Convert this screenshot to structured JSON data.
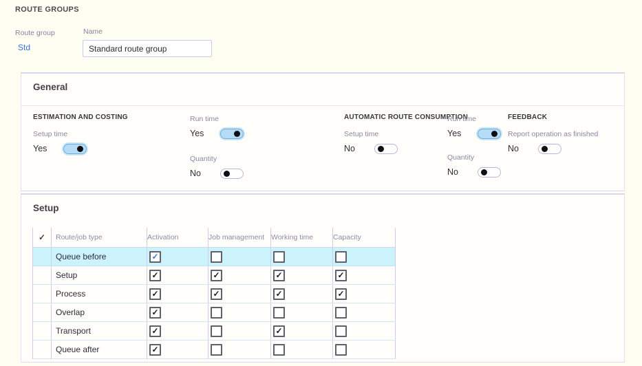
{
  "page": {
    "title": "ROUTE GROUPS"
  },
  "record": {
    "route_group": {
      "label": "Route group",
      "value": "Std"
    },
    "name": {
      "label": "Name",
      "value": "Standard route group"
    }
  },
  "general": {
    "title": "General",
    "estimation_and_costing": {
      "header": "ESTIMATION AND COSTING",
      "setup_time": {
        "label": "Setup time",
        "value": "Yes",
        "on": true
      },
      "run_time": {
        "label": "Run time",
        "value": "Yes",
        "on": true
      },
      "quantity": {
        "label": "Quantity",
        "value": "No",
        "on": false
      }
    },
    "automatic_route_consumption": {
      "header": "AUTOMATIC ROUTE CONSUMPTION",
      "setup_time": {
        "label": "Setup time",
        "value": "No",
        "on": false
      },
      "run_time": {
        "label": "Run time",
        "value": "Yes",
        "on": true
      },
      "quantity": {
        "label": "Quantity",
        "value": "No",
        "on": false
      }
    },
    "feedback": {
      "header": "FEEDBACK",
      "report_operation_as_finished": {
        "label": "Report operation as finished",
        "value": "No",
        "on": false
      }
    }
  },
  "setup": {
    "title": "Setup",
    "table": {
      "select_column_glyph": "✓",
      "check_glyph": "✓",
      "columns": [
        "Route/job type",
        "Activation",
        "Job management",
        "Working time",
        "Capacity"
      ],
      "rows": [
        {
          "route_job_type": "Queue before",
          "activation": true,
          "job_management": false,
          "working_time": false,
          "capacity": false,
          "selected": true
        },
        {
          "route_job_type": "Setup",
          "activation": true,
          "job_management": true,
          "working_time": true,
          "capacity": true,
          "selected": false
        },
        {
          "route_job_type": "Process",
          "activation": true,
          "job_management": true,
          "working_time": true,
          "capacity": true,
          "selected": false
        },
        {
          "route_job_type": "Overlap",
          "activation": true,
          "job_management": false,
          "working_time": false,
          "capacity": false,
          "selected": false
        },
        {
          "route_job_type": "Transport",
          "activation": true,
          "job_management": false,
          "working_time": true,
          "capacity": false,
          "selected": false
        },
        {
          "route_job_type": "Queue after",
          "activation": true,
          "job_management": false,
          "working_time": false,
          "capacity": false,
          "selected": false
        }
      ]
    }
  },
  "colors": {
    "page_bg": "#FFFEF3",
    "accent_blue": "#3C70DA",
    "toggle_on_fill": "#B6DCF6",
    "toggle_on_border": "#6FADDE",
    "selected_row_bg": "#CCF3FB",
    "selected_check": "#2D7ED6"
  }
}
